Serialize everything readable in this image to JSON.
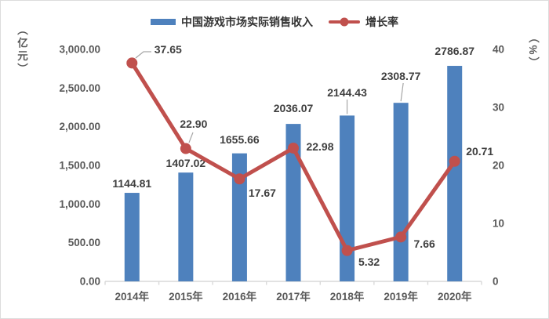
{
  "colors": {
    "bar": "#4E81BD",
    "line": "#C0504D",
    "data_label": "#3F3F3F",
    "tick_label": "#595959",
    "axis_line": "#D9D9D9",
    "leader_line": "#A6A6A6"
  },
  "legend": {
    "bar_label": "中国游戏市场实际销售收入",
    "line_label": "增长率"
  },
  "chart_data": {
    "type": "bar",
    "subtype": "combo bar+line, dual axis",
    "categories": [
      "2014年",
      "2015年",
      "2016年",
      "2017年",
      "2018年",
      "2019年",
      "2020年"
    ],
    "series": [
      {
        "name": "中国游戏市场实际销售收入",
        "type": "bar",
        "axis": "left",
        "unit": "亿元",
        "values": [
          1144.81,
          1407.02,
          1655.66,
          2036.07,
          2144.43,
          2308.77,
          2786.87
        ],
        "labels": [
          "1144.81",
          "1407.02",
          "1655.66",
          "2036.07",
          "2144.43",
          "2308.77",
          "2786.87"
        ]
      },
      {
        "name": "增长率",
        "type": "line",
        "axis": "right",
        "unit": "%",
        "values": [
          37.65,
          22.9,
          17.67,
          22.98,
          5.32,
          7.66,
          20.71
        ],
        "labels": [
          "37.65",
          "22.90",
          "17.67",
          "22.98",
          "5.32",
          "7.66",
          "20.71"
        ]
      }
    ],
    "left_axis": {
      "title": "（亿元）",
      "min": 0,
      "max": 3000,
      "step": 500,
      "tick_labels": [
        "0.00",
        "500.00",
        "1,000.00",
        "1,500.00",
        "2,000.00",
        "2,500.00",
        "3,000.00"
      ]
    },
    "right_axis": {
      "title": "（%）",
      "min": 0,
      "max": 40,
      "step": 10,
      "tick_labels": [
        "0",
        "10",
        "20",
        "30",
        "40"
      ]
    },
    "grid": false,
    "legend_position": "top"
  }
}
